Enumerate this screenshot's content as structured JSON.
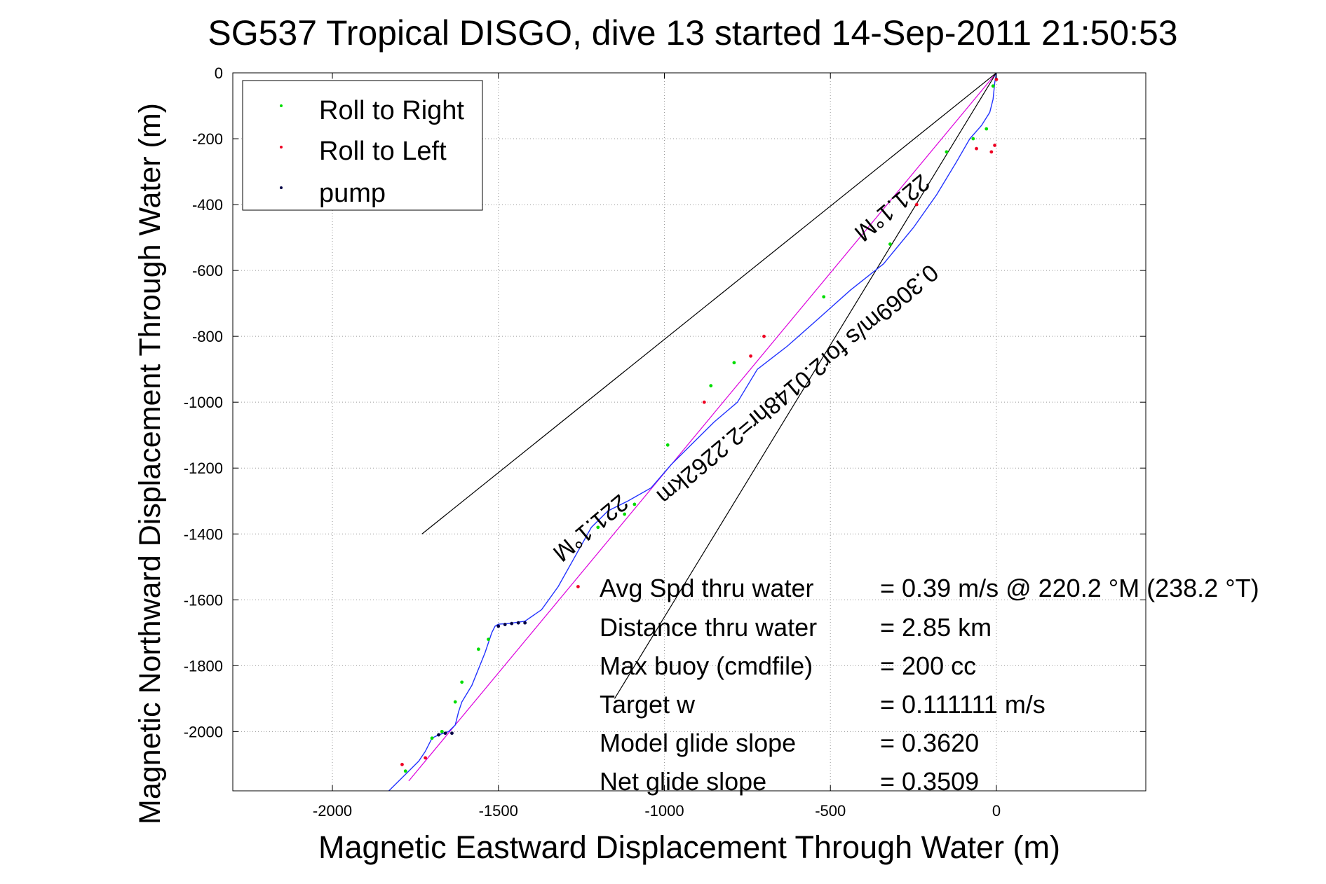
{
  "chart_data": {
    "type": "scatter",
    "title": "SG537 Tropical DISGO, dive 13 started 14-Sep-2011 21:50:53",
    "xlabel": "Magnetic Eastward Displacement Through Water (m)",
    "ylabel": "Magnetic Northward Displacement Through Water (m)",
    "xlim": [
      -2300,
      450
    ],
    "ylim": [
      -2180,
      0
    ],
    "xticks": [
      -2000,
      -1500,
      -1000,
      -500,
      0
    ],
    "yticks": [
      0,
      -200,
      -400,
      -600,
      -800,
      -1000,
      -1200,
      -1400,
      -1600,
      -1800,
      -2000
    ],
    "grid": true,
    "legend_position": "top-left",
    "legend": [
      {
        "label": "Roll to Right",
        "color": "#00dd00"
      },
      {
        "label": "Roll to Left",
        "color": "#ee0022"
      },
      {
        "label": "pump",
        "color": "#000044"
      }
    ],
    "track": {
      "name": "trajectory",
      "color": "#2233ff",
      "x": [
        0,
        -5,
        -10,
        -20,
        -45,
        -80,
        -120,
        -180,
        -250,
        -340,
        -440,
        -540,
        -630,
        -720,
        -780,
        -850,
        -920,
        -980,
        -1040,
        -1110,
        -1170,
        -1220,
        -1270,
        -1320,
        -1370,
        -1420,
        -1470,
        -1500,
        -1510,
        -1520,
        -1540,
        -1580,
        -1610,
        -1620,
        -1630,
        -1650,
        -1680,
        -1700,
        -1720,
        -1740,
        -1760,
        -1790,
        -1830
      ],
      "y": [
        0,
        -30,
        -80,
        -120,
        -160,
        -200,
        -270,
        -370,
        -470,
        -580,
        -660,
        -750,
        -830,
        -900,
        -1000,
        -1060,
        -1130,
        -1190,
        -1260,
        -1300,
        -1330,
        -1380,
        -1470,
        -1560,
        -1630,
        -1665,
        -1672,
        -1674,
        -1680,
        -1700,
        -1760,
        -1860,
        -1910,
        -1940,
        -1980,
        -2000,
        -2010,
        -2020,
        -2060,
        -2090,
        -2110,
        -2140,
        -2180
      ]
    },
    "reference_lines": [
      {
        "name": "mean heading",
        "color": "#dd00dd",
        "x": [
          0,
          -1770
        ],
        "y": [
          0,
          -2150
        ]
      },
      {
        "name": "heading bound left",
        "color": "#000000",
        "x": [
          0,
          -1730
        ],
        "y": [
          0,
          -1400
        ]
      },
      {
        "name": "heading bound right",
        "color": "#000000",
        "x": [
          0,
          -1150
        ],
        "y": [
          0,
          -1900
        ]
      }
    ],
    "markers": {
      "roll_right": {
        "x": [
          -10,
          -30,
          -70,
          -150,
          -320,
          -520,
          -790,
          -860,
          -990,
          -1090,
          -1120,
          -1200,
          -1530,
          -1560,
          -1610,
          -1630,
          -1670,
          -1700,
          -1780
        ],
        "y": [
          -40,
          -170,
          -200,
          -240,
          -520,
          -680,
          -880,
          -950,
          -1130,
          -1310,
          -1340,
          -1380,
          -1720,
          -1750,
          -1850,
          -1910,
          -2000,
          -2020,
          -2120
        ]
      },
      "roll_left": {
        "x": [
          0,
          -5,
          -15,
          -60,
          -240,
          -700,
          -740,
          -880,
          -1260,
          -1720,
          -1790
        ],
        "y": [
          -20,
          -220,
          -240,
          -230,
          -400,
          -800,
          -860,
          -1000,
          -1560,
          -2080,
          -2100
        ]
      },
      "pump": {
        "x": [
          -1500,
          -1480,
          -1460,
          -1440,
          -1420,
          -1680,
          -1660,
          -1640
        ],
        "y": [
          -1680,
          -1675,
          -1672,
          -1670,
          -1670,
          -2010,
          -2005,
          -2005
        ]
      }
    },
    "annotations": {
      "heading_top": "221.1°M",
      "speed_text": "0.3069m/s for2.0148hr=2.2262km",
      "heading_bottom": "221.1°M"
    },
    "stats": [
      {
        "label": "Avg Spd thru water",
        "value": "=  0.39 m/s @ 220.2 °M (238.2 °T)"
      },
      {
        "label": "Distance thru water",
        "value": "=  2.85 km"
      },
      {
        "label": "Max buoy (cmdfile)",
        "value": "= 200 cc"
      },
      {
        "label": "Target w",
        "value": "= 0.111111 m/s"
      },
      {
        "label": "Model glide slope",
        "value": "= 0.3620"
      },
      {
        "label": "Net glide slope",
        "value": "= 0.3509"
      }
    ]
  }
}
